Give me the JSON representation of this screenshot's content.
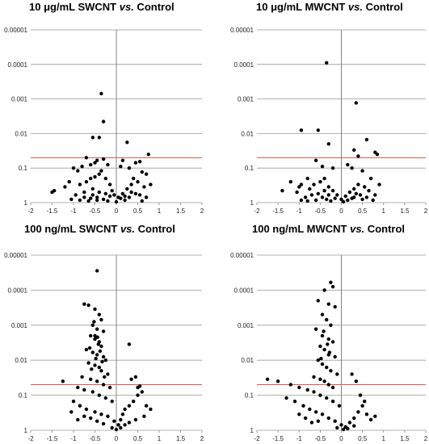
{
  "chart_data": [
    {
      "type": "scatter",
      "title_parts": [
        "10 μg/mL SWCNT ",
        "vs.",
        " Control"
      ],
      "xlim": [
        -2,
        2
      ],
      "x_ticks": [
        "-2",
        "-1.5",
        "-1",
        "-0.5",
        "0",
        "0.5",
        "1",
        "1.5",
        "2"
      ],
      "y_scale": "log (inverted, 1 at bottom)",
      "y_ticks": [
        "0.00001",
        "0.0001",
        "0.001",
        "0.01",
        "0.1",
        "1"
      ],
      "threshold_line": 0.05,
      "grid": true,
      "points": [
        [
          -0.35,
          0.0007
        ],
        [
          -0.55,
          0.013
        ],
        [
          -0.3,
          0.0045
        ],
        [
          -0.7,
          0.05
        ],
        [
          -0.4,
          0.013
        ],
        [
          0.15,
          0.06
        ],
        [
          0.25,
          0.018
        ],
        [
          0.55,
          0.065
        ],
        [
          0.75,
          0.04
        ],
        [
          0.45,
          0.07
        ],
        [
          -0.8,
          0.09
        ],
        [
          -0.9,
          0.12
        ],
        [
          -1.0,
          0.1
        ],
        [
          -0.6,
          0.08
        ],
        [
          -0.5,
          0.07
        ],
        [
          -0.45,
          0.06
        ],
        [
          -0.3,
          0.055
        ],
        [
          -0.2,
          0.08
        ],
        [
          0.1,
          0.09
        ],
        [
          0.3,
          0.1
        ],
        [
          0.6,
          0.13
        ],
        [
          0.7,
          0.15
        ],
        [
          0.4,
          0.2
        ],
        [
          -1.1,
          0.25
        ],
        [
          -1.45,
          0.45
        ],
        [
          -1.5,
          0.5
        ],
        [
          -1.2,
          0.35
        ],
        [
          -0.85,
          0.3
        ],
        [
          -0.7,
          0.25
        ],
        [
          -0.6,
          0.2
        ],
        [
          -0.5,
          0.18
        ],
        [
          -0.4,
          0.15
        ],
        [
          -0.35,
          0.12
        ],
        [
          -0.25,
          0.2
        ],
        [
          -0.15,
          0.3
        ],
        [
          -0.1,
          0.45
        ],
        [
          -0.05,
          0.6
        ],
        [
          0.05,
          0.7
        ],
        [
          0.15,
          0.55
        ],
        [
          0.25,
          0.4
        ],
        [
          0.35,
          0.3
        ],
        [
          0.5,
          0.25
        ],
        [
          0.65,
          0.35
        ],
        [
          0.8,
          0.3
        ],
        [
          -0.95,
          0.6
        ],
        [
          -0.75,
          0.5
        ],
        [
          -0.55,
          0.4
        ],
        [
          -0.45,
          0.7
        ],
        [
          -0.3,
          0.8
        ],
        [
          -0.2,
          0.9
        ],
        [
          0.0,
          0.95
        ],
        [
          0.2,
          0.85
        ],
        [
          0.3,
          0.7
        ],
        [
          0.45,
          0.55
        ],
        [
          0.55,
          0.6
        ],
        [
          0.7,
          0.7
        ],
        [
          -1.05,
          0.8
        ],
        [
          -0.85,
          0.85
        ],
        [
          -0.65,
          0.9
        ],
        [
          0.6,
          0.9
        ],
        [
          -0.55,
          0.6
        ],
        [
          -0.4,
          0.5
        ],
        [
          -0.25,
          0.55
        ],
        [
          -0.15,
          0.65
        ],
        [
          0.1,
          0.75
        ],
        [
          0.2,
          0.65
        ],
        [
          0.35,
          0.5
        ],
        [
          -0.75,
          0.7
        ],
        [
          -0.6,
          0.75
        ],
        [
          -0.45,
          0.85
        ]
      ]
    },
    {
      "type": "scatter",
      "title_parts": [
        "10 μg/mL MWCNT ",
        "vs.",
        " Control"
      ],
      "xlim": [
        -2,
        2
      ],
      "x_ticks": [
        "-2",
        "-1.5",
        "-1",
        "-0.5",
        "0",
        "0.5",
        "1",
        "1.5",
        "2"
      ],
      "y_scale": "log (inverted, 1 at bottom)",
      "y_ticks": [
        "0.00001",
        "0.0001",
        "0.001",
        "0.01",
        "0.1",
        "1"
      ],
      "threshold_line": 0.05,
      "grid": true,
      "points": [
        [
          -0.35,
          9e-05
        ],
        [
          0.35,
          0.0013
        ],
        [
          -0.95,
          0.008
        ],
        [
          -0.55,
          0.008
        ],
        [
          -0.3,
          0.02
        ],
        [
          0.6,
          0.015
        ],
        [
          0.85,
          0.04
        ],
        [
          0.8,
          0.035
        ],
        [
          0.3,
          0.03
        ],
        [
          0.4,
          0.045
        ],
        [
          -0.6,
          0.06
        ],
        [
          -0.45,
          0.09
        ],
        [
          -0.2,
          0.1
        ],
        [
          0.15,
          0.08
        ],
        [
          0.25,
          0.1
        ],
        [
          0.5,
          0.12
        ],
        [
          0.7,
          0.2
        ],
        [
          -0.8,
          0.2
        ],
        [
          -0.95,
          0.3
        ],
        [
          -1.0,
          0.35
        ],
        [
          -1.2,
          0.25
        ],
        [
          -1.4,
          0.45
        ],
        [
          -1.05,
          0.5
        ],
        [
          -0.75,
          0.4
        ],
        [
          -0.65,
          0.3
        ],
        [
          -0.5,
          0.25
        ],
        [
          -0.4,
          0.2
        ],
        [
          -0.3,
          0.35
        ],
        [
          -0.2,
          0.45
        ],
        [
          -0.1,
          0.6
        ],
        [
          0.0,
          0.8
        ],
        [
          0.1,
          0.65
        ],
        [
          0.2,
          0.5
        ],
        [
          0.3,
          0.4
        ],
        [
          0.4,
          0.3
        ],
        [
          0.55,
          0.35
        ],
        [
          0.65,
          0.45
        ],
        [
          0.8,
          0.6
        ],
        [
          0.9,
          0.3
        ],
        [
          -0.85,
          0.7
        ],
        [
          -0.7,
          0.6
        ],
        [
          -0.55,
          0.55
        ],
        [
          -0.45,
          0.7
        ],
        [
          -0.35,
          0.8
        ],
        [
          -0.25,
          0.9
        ],
        [
          0.05,
          0.95
        ],
        [
          0.15,
          0.85
        ],
        [
          0.3,
          0.7
        ],
        [
          0.45,
          0.6
        ],
        [
          0.6,
          0.7
        ],
        [
          -0.95,
          0.85
        ],
        [
          -0.8,
          0.9
        ],
        [
          0.75,
          0.85
        ],
        [
          -0.6,
          0.85
        ],
        [
          0.5,
          0.8
        ],
        [
          -0.4,
          0.45
        ],
        [
          0.35,
          0.55
        ],
        [
          -0.15,
          0.75
        ],
        [
          0.25,
          0.75
        ],
        [
          -0.3,
          0.6
        ]
      ]
    },
    {
      "type": "scatter",
      "title_parts": [
        "100 ng/mL SWCNT ",
        "vs.",
        " Control"
      ],
      "xlim": [
        -2,
        2
      ],
      "x_ticks": [
        "-2",
        "-1.5",
        "-1",
        "-0.5",
        "0",
        "0.5",
        "1",
        "1.5",
        "2"
      ],
      "y_scale": "log (inverted, 1 at bottom)",
      "y_ticks": [
        "0.00001",
        "0.0001",
        "0.001",
        "0.01",
        "0.1",
        "1"
      ],
      "threshold_line": 0.05,
      "grid": true,
      "points": [
        [
          -0.45,
          2.8e-05
        ],
        [
          -0.75,
          0.00025
        ],
        [
          -0.65,
          0.00027
        ],
        [
          -0.5,
          0.00035
        ],
        [
          -0.4,
          0.0005
        ],
        [
          -0.35,
          0.0007
        ],
        [
          -0.55,
          0.001
        ],
        [
          -0.45,
          0.0013
        ],
        [
          -0.3,
          0.0015
        ],
        [
          -0.6,
          0.002
        ],
        [
          -0.5,
          0.0025
        ],
        [
          -0.4,
          0.003
        ],
        [
          -0.35,
          0.004
        ],
        [
          -0.7,
          0.005
        ],
        [
          -0.55,
          0.006
        ],
        [
          -0.45,
          0.007
        ],
        [
          -0.3,
          0.008
        ],
        [
          -0.25,
          0.01
        ],
        [
          -0.65,
          0.012
        ],
        [
          -0.5,
          0.014
        ],
        [
          -0.4,
          0.016
        ],
        [
          -0.35,
          0.02
        ],
        [
          -0.2,
          0.025
        ],
        [
          -0.8,
          0.03
        ],
        [
          -0.6,
          0.035
        ],
        [
          -0.45,
          0.04
        ],
        [
          -0.3,
          0.05
        ],
        [
          -0.15,
          0.06
        ],
        [
          -1.25,
          0.04
        ],
        [
          -0.9,
          0.06
        ],
        [
          -0.75,
          0.07
        ],
        [
          -0.55,
          0.08
        ],
        [
          -0.4,
          0.1
        ],
        [
          -0.25,
          0.12
        ],
        [
          -0.1,
          0.15
        ],
        [
          -1.0,
          0.15
        ],
        [
          -0.85,
          0.2
        ],
        [
          -0.7,
          0.25
        ],
        [
          -0.5,
          0.3
        ],
        [
          -0.35,
          0.35
        ],
        [
          -0.2,
          0.4
        ],
        [
          -0.05,
          0.55
        ],
        [
          0.05,
          0.7
        ],
        [
          0.1,
          0.5
        ],
        [
          0.15,
          0.35
        ],
        [
          0.2,
          0.25
        ],
        [
          0.3,
          0.2
        ],
        [
          0.4,
          0.15
        ],
        [
          0.5,
          0.1
        ],
        [
          0.6,
          0.08
        ],
        [
          0.35,
          0.035
        ],
        [
          0.45,
          0.03
        ],
        [
          0.55,
          0.055
        ],
        [
          0.3,
          0.0035
        ],
        [
          0.5,
          0.06
        ],
        [
          0.7,
          0.2
        ],
        [
          0.8,
          0.25
        ],
        [
          0.65,
          0.4
        ],
        [
          0.45,
          0.5
        ],
        [
          0.3,
          0.6
        ],
        [
          0.2,
          0.7
        ],
        [
          0.1,
          0.85
        ],
        [
          0.0,
          0.95
        ],
        [
          -0.1,
          0.85
        ],
        [
          -0.3,
          0.65
        ],
        [
          -0.45,
          0.55
        ],
        [
          -0.6,
          0.45
        ],
        [
          -0.75,
          0.4
        ],
        [
          -0.9,
          0.5
        ],
        [
          -1.05,
          0.3
        ],
        [
          -0.5,
          0.002
        ],
        [
          -0.42,
          0.0035
        ],
        [
          -0.38,
          0.0055
        ],
        [
          -0.48,
          0.009
        ],
        [
          -0.33,
          0.011
        ],
        [
          -0.58,
          0.018
        ],
        [
          -0.28,
          0.03
        ],
        [
          -0.62,
          0.0045
        ],
        [
          -0.52,
          0.0008
        ],
        [
          -0.44,
          0.0022
        ]
      ]
    },
    {
      "type": "scatter",
      "title_parts": [
        "100 ng/mL MWCNT ",
        "vs.",
        " Control"
      ],
      "xlim": [
        -2,
        2
      ],
      "x_ticks": [
        "-2",
        "-1.5",
        "-1",
        "-0.5",
        "0",
        "0.5",
        "1",
        "1.5",
        "2"
      ],
      "y_scale": "log (inverted, 1 at bottom)",
      "y_ticks": [
        "0.00001",
        "0.0001",
        "0.001",
        "0.01",
        "0.1",
        "1"
      ],
      "threshold_line": 0.05,
      "grid": true,
      "points": [
        [
          -0.25,
          6e-05
        ],
        [
          -0.2,
          8e-05
        ],
        [
          -0.4,
          0.0001
        ],
        [
          -0.55,
          0.0002
        ],
        [
          -0.3,
          0.00025
        ],
        [
          -0.15,
          0.0003
        ],
        [
          -0.45,
          0.0005
        ],
        [
          -0.35,
          0.0007
        ],
        [
          -0.25,
          0.001
        ],
        [
          -0.6,
          0.0013
        ],
        [
          -0.45,
          0.002
        ],
        [
          -0.3,
          0.0025
        ],
        [
          -0.2,
          0.003
        ],
        [
          -0.5,
          0.004
        ],
        [
          -0.4,
          0.005
        ],
        [
          -0.3,
          0.007
        ],
        [
          -0.15,
          0.008
        ],
        [
          -0.55,
          0.01
        ],
        [
          -0.45,
          0.013
        ],
        [
          -0.35,
          0.016
        ],
        [
          -0.25,
          0.02
        ],
        [
          -0.1,
          0.025
        ],
        [
          -0.65,
          0.03
        ],
        [
          -0.5,
          0.035
        ],
        [
          -0.4,
          0.04
        ],
        [
          -0.3,
          0.05
        ],
        [
          -0.2,
          0.06
        ],
        [
          -1.75,
          0.035
        ],
        [
          -1.5,
          0.04
        ],
        [
          -1.2,
          0.05
        ],
        [
          -1.0,
          0.06
        ],
        [
          -0.8,
          0.07
        ],
        [
          -0.65,
          0.08
        ],
        [
          -0.5,
          0.1
        ],
        [
          -0.35,
          0.12
        ],
        [
          -0.2,
          0.15
        ],
        [
          -0.05,
          0.2
        ],
        [
          -1.3,
          0.12
        ],
        [
          -1.1,
          0.15
        ],
        [
          -0.9,
          0.2
        ],
        [
          -0.75,
          0.25
        ],
        [
          -0.6,
          0.3
        ],
        [
          -0.45,
          0.35
        ],
        [
          -0.3,
          0.45
        ],
        [
          -0.15,
          0.55
        ],
        [
          0.0,
          0.7
        ],
        [
          0.1,
          0.8
        ],
        [
          0.2,
          0.6
        ],
        [
          0.3,
          0.45
        ],
        [
          0.4,
          0.3
        ],
        [
          0.5,
          0.2
        ],
        [
          0.6,
          0.35
        ],
        [
          0.7,
          0.5
        ],
        [
          0.8,
          0.4
        ],
        [
          0.25,
          0.025
        ],
        [
          0.35,
          0.04
        ],
        [
          0.45,
          0.1
        ],
        [
          0.55,
          0.15
        ],
        [
          -0.1,
          0.85
        ],
        [
          0.05,
          0.95
        ],
        [
          0.15,
          0.9
        ],
        [
          0.3,
          0.75
        ],
        [
          -0.55,
          0.55
        ],
        [
          -0.7,
          0.6
        ],
        [
          -0.85,
          0.45
        ],
        [
          -1.0,
          0.35
        ],
        [
          -0.42,
          0.0015
        ],
        [
          -0.33,
          0.0035
        ],
        [
          -0.28,
          0.006
        ],
        [
          -0.48,
          0.009
        ]
      ]
    }
  ]
}
